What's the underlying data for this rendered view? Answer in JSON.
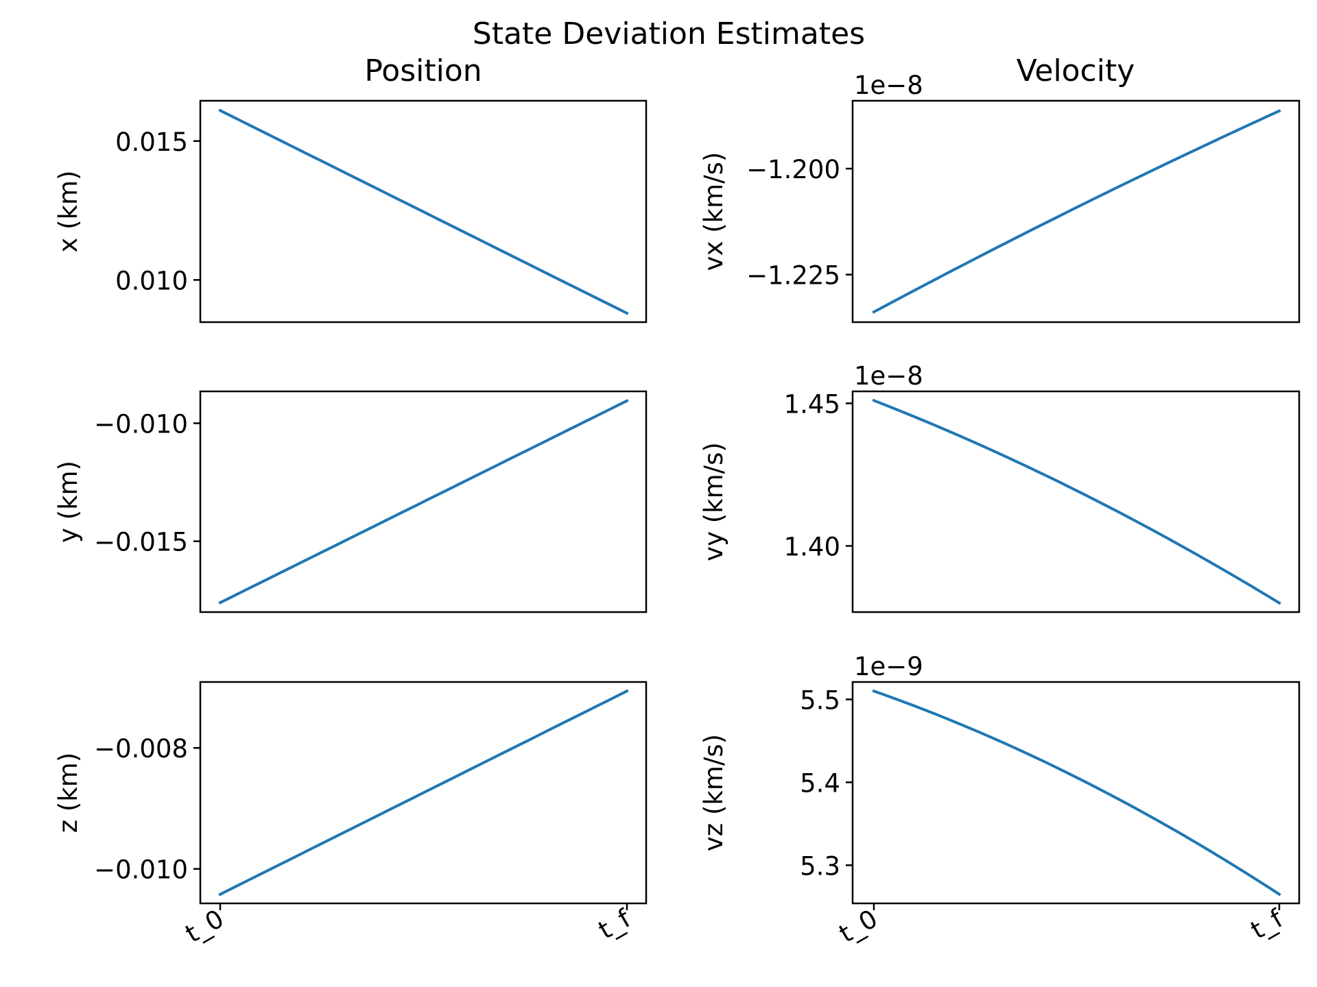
{
  "suptitle": "State Deviation Estimates",
  "column_titles": [
    "Position",
    "Velocity"
  ],
  "colors": {
    "line": "#1f77b4",
    "axes": "#000000"
  },
  "x_tick_labels": [
    "t_0",
    "t_f"
  ],
  "chart_data": [
    {
      "type": "line",
      "title": "Position",
      "ylabel": "x (km)",
      "offset_text": "",
      "x": [
        "t_0",
        "t_f"
      ],
      "y": [
        0.0161,
        0.0088
      ],
      "ylim": [
        0.00848,
        0.01645
      ],
      "yticks": [
        0.015,
        0.01
      ],
      "ytick_labels": [
        "0.015",
        "0.010"
      ],
      "curve": 0.0
    },
    {
      "type": "line",
      "title": "Velocity",
      "ylabel": "vx (km/s)",
      "offset_text": "1e−8",
      "x": [
        "t_0",
        "t_f"
      ],
      "y": [
        -1.2338,
        -1.1864
      ],
      "ylim": [
        -1.2362,
        -1.184
      ],
      "yticks": [
        -1.2,
        -1.225
      ],
      "ytick_labels": [
        "−1.200",
        "−1.225"
      ],
      "curve": 0.08
    },
    {
      "type": "line",
      "title": "",
      "ylabel": "y (km)",
      "offset_text": "",
      "x": [
        "t_0",
        "t_f"
      ],
      "y": [
        -0.0176,
        -0.00905
      ],
      "ylim": [
        -0.018,
        -0.00865
      ],
      "yticks": [
        -0.01,
        -0.015
      ],
      "ytick_labels": [
        "−0.010",
        "−0.015"
      ],
      "curve": 0.0
    },
    {
      "type": "line",
      "title": "",
      "ylabel": "vy (km/s)",
      "offset_text": "1e−8",
      "x": [
        "t_0",
        "t_f"
      ],
      "y": [
        1.451,
        1.38
      ],
      "ylim": [
        1.3768,
        1.4542
      ],
      "yticks": [
        1.45,
        1.4
      ],
      "ytick_labels": [
        "1.45",
        "1.40"
      ],
      "curve": -0.22
    },
    {
      "type": "line",
      "title": "",
      "ylabel": "z (km)",
      "offset_text": "",
      "x": [
        "t_0",
        "t_f"
      ],
      "y": [
        -0.01042,
        -0.00706
      ],
      "ylim": [
        -0.01057,
        -0.00691
      ],
      "yticks": [
        -0.008,
        -0.01
      ],
      "ytick_labels": [
        "−0.008",
        "−0.010"
      ],
      "curve": 0.0
    },
    {
      "type": "line",
      "title": "",
      "ylabel": "vz (km/s)",
      "offset_text": "1e−9",
      "x": [
        "t_0",
        "t_f"
      ],
      "y": [
        5.51,
        5.265
      ],
      "ylim": [
        5.254,
        5.521
      ],
      "yticks": [
        5.5,
        5.4,
        5.3
      ],
      "ytick_labels": [
        "5.5",
        "5.4",
        "5.3"
      ],
      "curve": -0.3
    }
  ]
}
